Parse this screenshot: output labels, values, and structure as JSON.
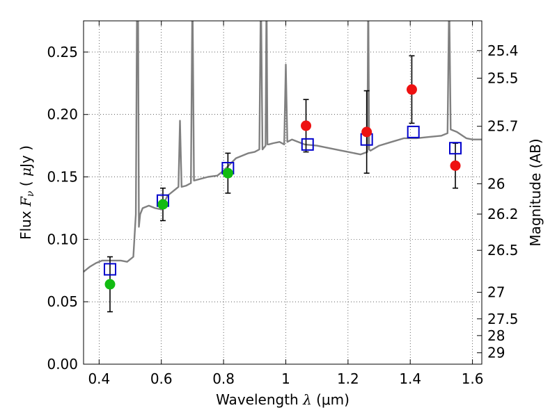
{
  "chart_data": {
    "type": "scatter",
    "xlabel": "Wavelength  λ (μm)",
    "xlabel_parts": {
      "prefix": "Wavelength ",
      "symbol": "λ",
      "suffix": " (μm)"
    },
    "ylabel": "Flux  F_ν  ( μJy )",
    "ylabel_parts": {
      "prefix": "Flux ",
      "symbol": "F",
      "subscript": "ν",
      "middle": " ( ",
      "mu": "μ",
      "suffix": "Jy )"
    },
    "y2label": "Magnitude (AB)",
    "xlim": [
      0.35,
      1.63
    ],
    "ylim": [
      0.0,
      0.275
    ],
    "grid": true,
    "grid_style": "dotted",
    "x_ticks": [
      {
        "value": 0.4,
        "label": "0.4"
      },
      {
        "value": 0.6,
        "label": "0.6"
      },
      {
        "value": 0.8,
        "label": "0.8"
      },
      {
        "value": 1.0,
        "label": "1"
      },
      {
        "value": 1.2,
        "label": "1.2"
      },
      {
        "value": 1.4,
        "label": "1.4"
      },
      {
        "value": 1.6,
        "label": "1.6"
      }
    ],
    "y_ticks": [
      {
        "value": 0.0,
        "label": "0.00"
      },
      {
        "value": 0.05,
        "label": "0.05"
      },
      {
        "value": 0.1,
        "label": "0.10"
      },
      {
        "value": 0.15,
        "label": "0.15"
      },
      {
        "value": 0.2,
        "label": "0.20"
      },
      {
        "value": 0.25,
        "label": "0.25"
      }
    ],
    "y2_ticks": [
      {
        "value": 25.4,
        "label": "25.4"
      },
      {
        "value": 25.5,
        "label": "25.5"
      },
      {
        "value": 25.7,
        "label": "25.7"
      },
      {
        "value": 26.0,
        "label": "26"
      },
      {
        "value": 26.2,
        "label": "26.2"
      },
      {
        "value": 26.5,
        "label": "26.5"
      },
      {
        "value": 27.0,
        "label": "27"
      },
      {
        "value": 27.5,
        "label": "27.5"
      },
      {
        "value": 28.0,
        "label": "28"
      },
      {
        "value": 29.0,
        "label": "29"
      }
    ],
    "colors": {
      "template": "#808080",
      "model": "#0000cc",
      "observed_green": "#11bb11",
      "observed_red": "#ee1111",
      "errorbar": "#000000"
    },
    "template_spectrum": {
      "x": [
        0.35,
        0.37,
        0.39,
        0.41,
        0.43,
        0.45,
        0.47,
        0.49,
        0.51,
        0.518,
        0.522,
        0.525,
        0.528,
        0.532,
        0.54,
        0.56,
        0.58,
        0.6,
        0.61,
        0.62,
        0.64,
        0.655,
        0.66,
        0.665,
        0.68,
        0.695,
        0.7,
        0.705,
        0.72,
        0.75,
        0.78,
        0.8,
        0.82,
        0.84,
        0.86,
        0.88,
        0.9,
        0.915,
        0.92,
        0.925,
        0.935,
        0.938,
        0.941,
        0.945,
        0.96,
        0.98,
        0.995,
        1.0,
        1.005,
        1.02,
        1.06,
        1.1,
        1.14,
        1.18,
        1.2,
        1.24,
        1.262,
        1.265,
        1.268,
        1.272,
        1.3,
        1.34,
        1.38,
        1.42,
        1.46,
        1.5,
        1.52,
        1.525,
        1.53,
        1.55,
        1.58,
        1.6,
        1.63
      ],
      "y": [
        0.074,
        0.078,
        0.081,
        0.083,
        0.083,
        0.083,
        0.083,
        0.082,
        0.086,
        0.12,
        0.3,
        0.3,
        0.11,
        0.12,
        0.125,
        0.127,
        0.125,
        0.124,
        0.13,
        0.135,
        0.139,
        0.142,
        0.195,
        0.142,
        0.143,
        0.145,
        0.3,
        0.147,
        0.148,
        0.15,
        0.151,
        0.155,
        0.16,
        0.165,
        0.167,
        0.169,
        0.17,
        0.172,
        0.3,
        0.172,
        0.175,
        0.3,
        0.176,
        0.176,
        0.177,
        0.178,
        0.176,
        0.24,
        0.178,
        0.18,
        0.176,
        0.175,
        0.173,
        0.171,
        0.17,
        0.168,
        0.17,
        0.3,
        0.172,
        0.171,
        0.175,
        0.178,
        0.181,
        0.181,
        0.182,
        0.183,
        0.185,
        0.295,
        0.188,
        0.186,
        0.181,
        0.18,
        0.18
      ]
    },
    "observed": [
      {
        "x": 0.435,
        "y": 0.064,
        "err": 0.022,
        "color": "observed_green"
      },
      {
        "x": 0.605,
        "y": 0.128,
        "err": 0.013,
        "color": "observed_green"
      },
      {
        "x": 0.814,
        "y": 0.153,
        "err": 0.016,
        "color": "observed_green"
      },
      {
        "x": 1.065,
        "y": 0.191,
        "err": 0.021,
        "color": "observed_red"
      },
      {
        "x": 1.26,
        "y": 0.186,
        "err": 0.033,
        "color": "observed_red"
      },
      {
        "x": 1.405,
        "y": 0.22,
        "err": 0.027,
        "color": "observed_red"
      },
      {
        "x": 1.545,
        "y": 0.159,
        "err": 0.018,
        "color": "observed_red"
      }
    ],
    "model": [
      {
        "x": 0.435,
        "y": 0.076
      },
      {
        "x": 0.605,
        "y": 0.131
      },
      {
        "x": 0.814,
        "y": 0.157
      },
      {
        "x": 1.07,
        "y": 0.176
      },
      {
        "x": 1.26,
        "y": 0.18
      },
      {
        "x": 1.41,
        "y": 0.186
      },
      {
        "x": 1.545,
        "y": 0.173
      }
    ]
  }
}
